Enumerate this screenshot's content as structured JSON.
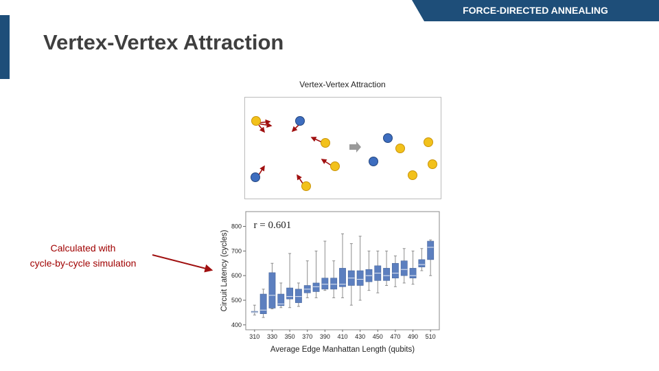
{
  "header": {
    "section_label": "FORCE-DIRECTED ANNEALING"
  },
  "slide": {
    "title": "Vertex-Vertex Attraction"
  },
  "figure": {
    "title": "Vertex-Vertex Attraction"
  },
  "annotation": {
    "line1": "Calculated with",
    "line2": "cycle-by-cycle simulation"
  },
  "colors": {
    "accent": "#1e4e79",
    "box": "#5c7fbf",
    "blue_vertex": "#3d6dbf",
    "yellow_vertex": "#f2c11b",
    "force_arrow": "#a01010",
    "note": "#a00000"
  },
  "chart_data": {
    "type": "box",
    "annotation_text": "r = 0.601",
    "xlabel": "Average Edge Manhattan Length (qubits)",
    "ylabel": "Circuit Latency (cycles)",
    "ylim": [
      380,
      860
    ],
    "yticks": [
      400,
      500,
      600,
      700,
      800
    ],
    "xticks": [
      "310",
      "330",
      "350",
      "370",
      "390",
      "410",
      "430",
      "450",
      "470",
      "490",
      "510"
    ],
    "x_range": [
      300,
      520
    ],
    "boxes": [
      {
        "x": 310,
        "min": 440,
        "q1": 450,
        "median": 452,
        "q3": 455,
        "max": 480
      },
      {
        "x": 320,
        "min": 430,
        "q1": 445,
        "median": 460,
        "q3": 525,
        "max": 545
      },
      {
        "x": 330,
        "min": 465,
        "q1": 468,
        "median": 520,
        "q3": 612,
        "max": 650
      },
      {
        "x": 340,
        "min": 470,
        "q1": 478,
        "median": 485,
        "q3": 525,
        "max": 570
      },
      {
        "x": 350,
        "min": 470,
        "q1": 505,
        "median": 515,
        "q3": 550,
        "max": 690
      },
      {
        "x": 360,
        "min": 475,
        "q1": 490,
        "median": 515,
        "q3": 545,
        "max": 570
      },
      {
        "x": 370,
        "min": 510,
        "q1": 530,
        "median": 545,
        "q3": 560,
        "max": 660
      },
      {
        "x": 380,
        "min": 510,
        "q1": 535,
        "median": 555,
        "q3": 570,
        "max": 700
      },
      {
        "x": 390,
        "min": 540,
        "q1": 545,
        "median": 565,
        "q3": 590,
        "max": 740
      },
      {
        "x": 400,
        "min": 510,
        "q1": 545,
        "median": 565,
        "q3": 590,
        "max": 660
      },
      {
        "x": 410,
        "min": 510,
        "q1": 555,
        "median": 565,
        "q3": 630,
        "max": 770
      },
      {
        "x": 420,
        "min": 480,
        "q1": 560,
        "median": 590,
        "q3": 620,
        "max": 730
      },
      {
        "x": 430,
        "min": 500,
        "q1": 560,
        "median": 585,
        "q3": 620,
        "max": 760
      },
      {
        "x": 440,
        "min": 540,
        "q1": 575,
        "median": 600,
        "q3": 625,
        "max": 700
      },
      {
        "x": 450,
        "min": 530,
        "q1": 580,
        "median": 610,
        "q3": 640,
        "max": 700
      },
      {
        "x": 460,
        "min": 560,
        "q1": 580,
        "median": 600,
        "q3": 630,
        "max": 700
      },
      {
        "x": 470,
        "min": 555,
        "q1": 590,
        "median": 610,
        "q3": 650,
        "max": 680
      },
      {
        "x": 480,
        "min": 570,
        "q1": 600,
        "median": 625,
        "q3": 660,
        "max": 710
      },
      {
        "x": 490,
        "min": 565,
        "q1": 590,
        "median": 600,
        "q3": 630,
        "max": 700
      },
      {
        "x": 500,
        "min": 620,
        "q1": 635,
        "median": 645,
        "q3": 665,
        "max": 710
      },
      {
        "x": 510,
        "min": 600,
        "q1": 665,
        "median": 715,
        "q3": 740,
        "max": 745
      }
    ]
  }
}
